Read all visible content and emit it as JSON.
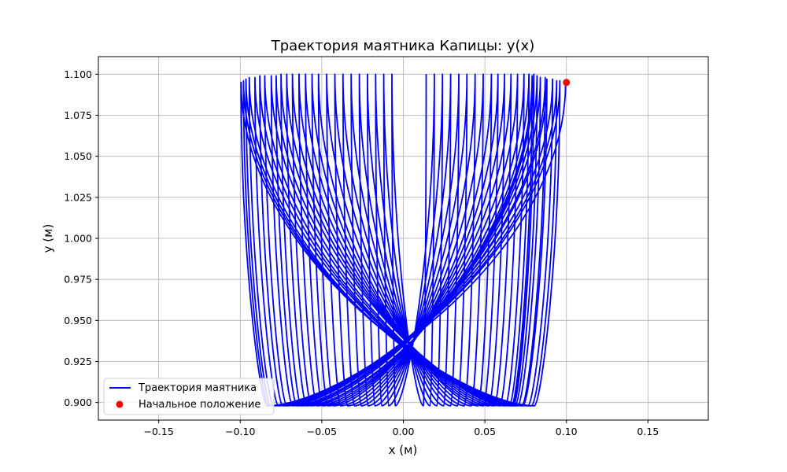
{
  "chart_data": {
    "type": "line",
    "title": "Траектория маятника Капицы: y(x)",
    "xlabel": "x (м)",
    "ylabel": "y (м)",
    "xlim": [
      -0.187,
      0.187
    ],
    "ylim": [
      0.8893,
      1.1107
    ],
    "xticks": [
      -0.15,
      -0.1,
      -0.05,
      0.0,
      0.05,
      0.1,
      0.15
    ],
    "xtick_labels": [
      "−0.15",
      "−0.10",
      "−0.05",
      "0.00",
      "0.05",
      "0.10",
      "0.15"
    ],
    "yticks": [
      0.9,
      0.925,
      0.95,
      0.975,
      1.0,
      1.025,
      1.05,
      1.075,
      1.1
    ],
    "ytick_labels": [
      "0.900",
      "0.925",
      "0.950",
      "0.975",
      "1.000",
      "1.025",
      "1.050",
      "1.075",
      "1.100"
    ],
    "grid": true,
    "legend_position": "lower-left",
    "series": [
      {
        "name": "Траектория маятника",
        "kind": "line",
        "color": "#0000ff",
        "x": [
          0.0995,
          -0.0995,
          0.096,
          -0.098,
          0.094,
          -0.0965,
          0.0915,
          -0.0945,
          0.088,
          -0.091,
          0.087,
          -0.088,
          0.084,
          -0.085,
          0.082,
          -0.081,
          0.08,
          -0.078,
          0.079,
          -0.075,
          0.08,
          -0.0715,
          0.077,
          -0.068,
          0.074,
          -0.064,
          0.07,
          -0.06,
          0.066,
          -0.056,
          0.062,
          -0.052,
          0.058,
          -0.047,
          0.054,
          -0.042,
          0.049,
          -0.037,
          0.044,
          -0.032,
          0.039,
          -0.027,
          0.034,
          -0.022,
          0.029,
          -0.017,
          0.024,
          -0.012,
          0.019,
          -0.007,
          0.014
        ],
        "y": [
          1.095,
          1.095,
          1.096,
          1.096,
          1.096,
          1.097,
          1.097,
          1.098,
          1.097,
          1.098,
          1.098,
          1.099,
          1.098,
          1.099,
          1.099,
          1.099,
          1.099,
          1.099,
          1.099,
          1.1,
          1.1,
          1.1,
          1.1,
          1.1,
          1.1,
          1.1,
          1.1,
          1.1,
          1.1,
          1.1,
          1.1,
          1.1,
          1.1,
          1.1,
          1.1,
          1.1,
          1.1,
          1.1,
          1.1,
          1.1,
          1.1,
          1.1,
          1.1,
          1.1,
          1.1,
          1.1,
          1.1,
          1.1,
          1.1,
          1.1,
          1.1
        ]
      },
      {
        "name": "Начальное положение",
        "kind": "scatter",
        "color": "#ff0000",
        "x": [
          0.1
        ],
        "y": [
          1.095
        ]
      }
    ]
  }
}
